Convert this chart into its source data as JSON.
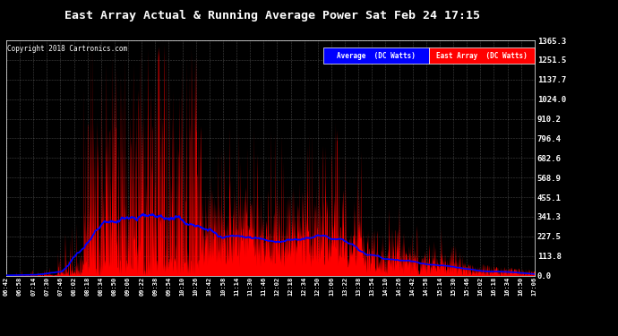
{
  "title": "East Array Actual & Running Average Power Sat Feb 24 17:15",
  "copyright": "Copyright 2018 Cartronics.com",
  "ylim": [
    0,
    1365.3
  ],
  "yticks": [
    0.0,
    113.8,
    227.5,
    341.3,
    455.1,
    568.9,
    682.6,
    796.4,
    910.2,
    1024.0,
    1137.7,
    1251.5,
    1365.3
  ],
  "bg_color": "#000000",
  "plot_bg_color": "#000000",
  "grid_color": "#888888",
  "fill_color": "#ff0000",
  "avg_color": "#0000ff",
  "title_color": "#ffffff",
  "tick_color": "#ffffff",
  "legend_avg_bg": "#0000ff",
  "legend_east_bg": "#ff0000",
  "x_start_hour": 6,
  "x_start_min": 42,
  "x_end_hour": 17,
  "x_end_min": 6,
  "num_points": 2000,
  "avg_peak_watts": 341.3,
  "max_spike_watts": 1365.3
}
